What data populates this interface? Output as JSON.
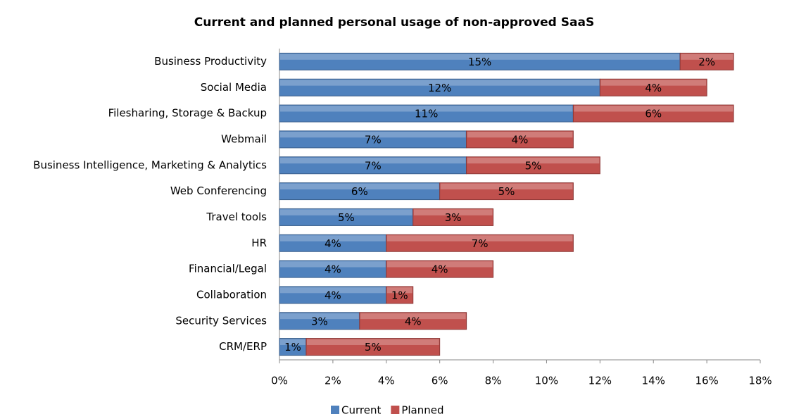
{
  "chart_data": {
    "type": "stacked_barh",
    "title": "Current and planned personal usage of non-approved SaaS",
    "categories": [
      "Business Productivity",
      "Social Media",
      "Filesharing, Storage & Backup",
      "Webmail",
      "Business Intelligence, Marketing & Analytics",
      "Web Conferencing",
      "Travel tools",
      "HR",
      "Financial/Legal",
      "Collaboration",
      "Security Services",
      "CRM/ERP"
    ],
    "series": [
      {
        "name": "Current",
        "color": "#4f81bd",
        "values": [
          15,
          12,
          11,
          7,
          7,
          6,
          5,
          4,
          4,
          4,
          3,
          1
        ],
        "value_labels": [
          "15%",
          "12%",
          "11%",
          "7%",
          "7%",
          "6%",
          "5%",
          "4%",
          "4%",
          "4%",
          "3%",
          "1%"
        ]
      },
      {
        "name": "Planned",
        "color": "#c0504d",
        "values": [
          2,
          4,
          6,
          4,
          5,
          5,
          3,
          7,
          4,
          1,
          4,
          5
        ],
        "value_labels": [
          "2%",
          "4%",
          "6%",
          "4%",
          "5%",
          "5%",
          "3%",
          "7%",
          "4%",
          "1%",
          "4%",
          "5%"
        ]
      }
    ],
    "xlim": [
      0,
      18
    ],
    "xticks": [
      {
        "value": 0,
        "label": "0%"
      },
      {
        "value": 2,
        "label": "2%"
      },
      {
        "value": 4,
        "label": "4%"
      },
      {
        "value": 6,
        "label": "6%"
      },
      {
        "value": 8,
        "label": "8%"
      },
      {
        "value": 10,
        "label": "10%"
      },
      {
        "value": 12,
        "label": "12%"
      },
      {
        "value": 14,
        "label": "14%"
      },
      {
        "value": 16,
        "label": "16%"
      },
      {
        "value": 18,
        "label": "18%"
      }
    ],
    "legend": "bottom"
  }
}
